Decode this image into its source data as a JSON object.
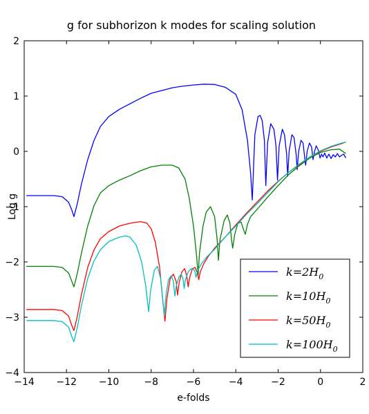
{
  "chart_data": {
    "type": "line",
    "title": "g for subhorizon k modes for scaling solution",
    "xlabel": "e-folds",
    "ylabel": "Log g",
    "xlim": [
      -14,
      2
    ],
    "ylim": [
      -4,
      2
    ],
    "xticks": [
      -14,
      -12,
      -10,
      -8,
      -6,
      -4,
      -2,
      0,
      2
    ],
    "yticks": [
      -4,
      -3,
      -2,
      -1,
      0,
      1,
      2
    ],
    "xtick_labels": [
      "−14",
      "−12",
      "−10",
      "−8",
      "−6",
      "−4",
      "−2",
      "0",
      "2"
    ],
    "ytick_labels": [
      "−4",
      "−3",
      "−2",
      "−1",
      "0",
      "1",
      "2"
    ],
    "legend_position": "lower-right",
    "grid": false,
    "series": [
      {
        "name": "k=2H0",
        "legend": {
          "base": "k=2H",
          "sub": "0"
        },
        "color": "#0000ff",
        "points": [
          [
            -13.9,
            -0.8
          ],
          [
            -12.6,
            -0.8
          ],
          [
            -12.2,
            -0.82
          ],
          [
            -11.9,
            -0.92
          ],
          [
            -11.75,
            -1.06
          ],
          [
            -11.65,
            -1.18
          ],
          [
            -11.5,
            -0.96
          ],
          [
            -11.3,
            -0.6
          ],
          [
            -11.0,
            -0.15
          ],
          [
            -10.7,
            0.2
          ],
          [
            -10.4,
            0.45
          ],
          [
            -10.0,
            0.63
          ],
          [
            -9.5,
            0.76
          ],
          [
            -9.0,
            0.86
          ],
          [
            -8.5,
            0.96
          ],
          [
            -8.0,
            1.05
          ],
          [
            -7.5,
            1.1
          ],
          [
            -7.0,
            1.15
          ],
          [
            -6.5,
            1.18
          ],
          [
            -6.0,
            1.2
          ],
          [
            -5.5,
            1.215
          ],
          [
            -5.0,
            1.21
          ],
          [
            -4.5,
            1.16
          ],
          [
            -4.0,
            1.03
          ],
          [
            -3.7,
            0.75
          ],
          [
            -3.45,
            0.2
          ],
          [
            -3.3,
            -0.4
          ],
          [
            -3.22,
            -0.88
          ],
          [
            -3.1,
            0.3
          ],
          [
            -2.95,
            0.63
          ],
          [
            -2.85,
            0.65
          ],
          [
            -2.75,
            0.55
          ],
          [
            -2.65,
            0.2
          ],
          [
            -2.58,
            -0.62
          ],
          [
            -2.5,
            0.15
          ],
          [
            -2.35,
            0.5
          ],
          [
            -2.2,
            0.4
          ],
          [
            -2.1,
            0.1
          ],
          [
            -2.03,
            -0.52
          ],
          [
            -1.95,
            0.1
          ],
          [
            -1.8,
            0.4
          ],
          [
            -1.7,
            0.3
          ],
          [
            -1.6,
            -0.05
          ],
          [
            -1.55,
            -0.45
          ],
          [
            -1.48,
            0.0
          ],
          [
            -1.35,
            0.3
          ],
          [
            -1.25,
            0.25
          ],
          [
            -1.15,
            -0.05
          ],
          [
            -1.1,
            -0.33
          ],
          [
            -1.03,
            0.0
          ],
          [
            -0.92,
            0.2
          ],
          [
            -0.82,
            0.15
          ],
          [
            -0.75,
            -0.1
          ],
          [
            -0.7,
            -0.25
          ],
          [
            -0.63,
            0.0
          ],
          [
            -0.52,
            0.15
          ],
          [
            -0.42,
            0.08
          ],
          [
            -0.35,
            -0.15
          ],
          [
            -0.28,
            0.0
          ],
          [
            -0.2,
            0.1
          ],
          [
            -0.1,
            0.02
          ],
          [
            -0.02,
            -0.12
          ],
          [
            0.05,
            -0.05
          ],
          [
            0.12,
            -0.1
          ],
          [
            0.2,
            -0.03
          ],
          [
            0.3,
            -0.12
          ],
          [
            0.4,
            -0.05
          ],
          [
            0.5,
            -0.13
          ],
          [
            0.6,
            -0.06
          ],
          [
            0.7,
            -0.1
          ],
          [
            0.8,
            -0.04
          ],
          [
            0.9,
            -0.1
          ],
          [
            1.0,
            -0.07
          ],
          [
            1.1,
            -0.05
          ],
          [
            1.2,
            -0.12
          ]
        ]
      },
      {
        "name": "k=10H0",
        "legend": {
          "base": "k=10H",
          "sub": "0"
        },
        "color": "#008000",
        "points": [
          [
            -13.9,
            -2.08
          ],
          [
            -12.6,
            -2.08
          ],
          [
            -12.2,
            -2.1
          ],
          [
            -11.9,
            -2.2
          ],
          [
            -11.75,
            -2.35
          ],
          [
            -11.65,
            -2.45
          ],
          [
            -11.5,
            -2.22
          ],
          [
            -11.3,
            -1.85
          ],
          [
            -11.0,
            -1.35
          ],
          [
            -10.7,
            -0.98
          ],
          [
            -10.4,
            -0.75
          ],
          [
            -10.0,
            -0.62
          ],
          [
            -9.5,
            -0.52
          ],
          [
            -9.0,
            -0.44
          ],
          [
            -8.5,
            -0.35
          ],
          [
            -8.0,
            -0.28
          ],
          [
            -7.5,
            -0.25
          ],
          [
            -7.0,
            -0.25
          ],
          [
            -6.7,
            -0.3
          ],
          [
            -6.4,
            -0.5
          ],
          [
            -6.2,
            -0.85
          ],
          [
            -6.0,
            -1.35
          ],
          [
            -5.85,
            -1.9
          ],
          [
            -5.78,
            -2.25
          ],
          [
            -5.72,
            -1.85
          ],
          [
            -5.55,
            -1.35
          ],
          [
            -5.4,
            -1.1
          ],
          [
            -5.2,
            -1.0
          ],
          [
            -5.0,
            -1.18
          ],
          [
            -4.88,
            -1.6
          ],
          [
            -4.82,
            -1.97
          ],
          [
            -4.75,
            -1.6
          ],
          [
            -4.55,
            -1.25
          ],
          [
            -4.4,
            -1.15
          ],
          [
            -4.28,
            -1.3
          ],
          [
            -4.2,
            -1.6
          ],
          [
            -4.15,
            -1.75
          ],
          [
            -4.05,
            -1.5
          ],
          [
            -3.9,
            -1.3
          ],
          [
            -3.75,
            -1.28
          ],
          [
            -3.65,
            -1.4
          ],
          [
            -3.55,
            -1.5
          ],
          [
            -3.45,
            -1.32
          ],
          [
            -3.3,
            -1.18
          ],
          [
            -3.0,
            -1.05
          ],
          [
            -2.5,
            -0.83
          ],
          [
            -2.0,
            -0.62
          ],
          [
            -1.5,
            -0.42
          ],
          [
            -1.0,
            -0.26
          ],
          [
            -0.5,
            -0.12
          ],
          [
            0.0,
            -0.02
          ],
          [
            0.5,
            0.03
          ],
          [
            0.9,
            0.04
          ],
          [
            1.2,
            -0.04
          ]
        ]
      },
      {
        "name": "k=50H0",
        "legend": {
          "base": "k=50H",
          "sub": "0"
        },
        "color": "#ff0000",
        "points": [
          [
            -13.9,
            -2.86
          ],
          [
            -12.6,
            -2.86
          ],
          [
            -12.2,
            -2.88
          ],
          [
            -11.9,
            -2.98
          ],
          [
            -11.75,
            -3.15
          ],
          [
            -11.65,
            -3.24
          ],
          [
            -11.5,
            -3.0
          ],
          [
            -11.3,
            -2.6
          ],
          [
            -11.0,
            -2.1
          ],
          [
            -10.7,
            -1.78
          ],
          [
            -10.4,
            -1.58
          ],
          [
            -10.0,
            -1.45
          ],
          [
            -9.5,
            -1.35
          ],
          [
            -9.0,
            -1.3
          ],
          [
            -8.5,
            -1.27
          ],
          [
            -8.2,
            -1.3
          ],
          [
            -8.0,
            -1.4
          ],
          [
            -7.8,
            -1.65
          ],
          [
            -7.6,
            -2.1
          ],
          [
            -7.45,
            -2.7
          ],
          [
            -7.35,
            -3.07
          ],
          [
            -7.25,
            -2.65
          ],
          [
            -7.1,
            -2.3
          ],
          [
            -6.95,
            -2.22
          ],
          [
            -6.82,
            -2.35
          ],
          [
            -6.75,
            -2.6
          ],
          [
            -6.68,
            -2.38
          ],
          [
            -6.55,
            -2.18
          ],
          [
            -6.42,
            -2.12
          ],
          [
            -6.32,
            -2.25
          ],
          [
            -6.25,
            -2.45
          ],
          [
            -6.18,
            -2.28
          ],
          [
            -6.05,
            -2.12
          ],
          [
            -5.92,
            -2.1
          ],
          [
            -5.82,
            -2.2
          ],
          [
            -5.75,
            -2.32
          ],
          [
            -5.68,
            -2.18
          ],
          [
            -5.5,
            -2.02
          ],
          [
            -5.3,
            -1.9
          ],
          [
            -5.0,
            -1.75
          ],
          [
            -4.5,
            -1.55
          ],
          [
            -4.0,
            -1.33
          ],
          [
            -3.5,
            -1.12
          ],
          [
            -3.0,
            -0.92
          ],
          [
            -2.5,
            -0.72
          ],
          [
            -2.0,
            -0.54
          ],
          [
            -1.5,
            -0.38
          ],
          [
            -1.0,
            -0.24
          ],
          [
            -0.5,
            -0.1
          ],
          [
            0.0,
            0.0
          ],
          [
            0.5,
            0.08
          ],
          [
            1.0,
            0.14
          ],
          [
            1.2,
            0.17
          ]
        ]
      },
      {
        "name": "k=100H0",
        "legend": {
          "base": "k=100H",
          "sub": "0"
        },
        "color": "#00bfbf",
        "points": [
          [
            -13.9,
            -3.06
          ],
          [
            -12.6,
            -3.06
          ],
          [
            -12.2,
            -3.08
          ],
          [
            -11.9,
            -3.18
          ],
          [
            -11.75,
            -3.35
          ],
          [
            -11.65,
            -3.44
          ],
          [
            -11.5,
            -3.2
          ],
          [
            -11.3,
            -2.8
          ],
          [
            -11.0,
            -2.3
          ],
          [
            -10.7,
            -1.98
          ],
          [
            -10.4,
            -1.78
          ],
          [
            -10.0,
            -1.63
          ],
          [
            -9.5,
            -1.55
          ],
          [
            -9.2,
            -1.53
          ],
          [
            -9.0,
            -1.55
          ],
          [
            -8.7,
            -1.7
          ],
          [
            -8.45,
            -2.0
          ],
          [
            -8.25,
            -2.45
          ],
          [
            -8.12,
            -2.9
          ],
          [
            -8.02,
            -2.5
          ],
          [
            -7.85,
            -2.15
          ],
          [
            -7.7,
            -2.08
          ],
          [
            -7.55,
            -2.3
          ],
          [
            -7.45,
            -2.7
          ],
          [
            -7.38,
            -2.98
          ],
          [
            -7.3,
            -2.6
          ],
          [
            -7.18,
            -2.32
          ],
          [
            -7.05,
            -2.25
          ],
          [
            -6.95,
            -2.35
          ],
          [
            -6.88,
            -2.62
          ],
          [
            -6.82,
            -2.45
          ],
          [
            -6.7,
            -2.28
          ],
          [
            -6.58,
            -2.22
          ],
          [
            -6.5,
            -2.3
          ],
          [
            -6.44,
            -2.48
          ],
          [
            -6.38,
            -2.32
          ],
          [
            -6.25,
            -2.18
          ],
          [
            -6.1,
            -2.12
          ],
          [
            -5.95,
            -2.15
          ],
          [
            -5.88,
            -2.28
          ],
          [
            -5.8,
            -2.15
          ],
          [
            -5.6,
            -2.02
          ],
          [
            -5.4,
            -1.92
          ],
          [
            -5.0,
            -1.77
          ],
          [
            -4.5,
            -1.55
          ],
          [
            -4.0,
            -1.35
          ],
          [
            -3.5,
            -1.14
          ],
          [
            -3.0,
            -0.95
          ],
          [
            -2.5,
            -0.75
          ],
          [
            -2.0,
            -0.55
          ],
          [
            -1.5,
            -0.38
          ],
          [
            -1.0,
            -0.23
          ],
          [
            -0.5,
            -0.1
          ],
          [
            0.0,
            0.01
          ],
          [
            0.5,
            0.09
          ],
          [
            1.0,
            0.15
          ],
          [
            1.2,
            0.17
          ]
        ]
      }
    ]
  }
}
